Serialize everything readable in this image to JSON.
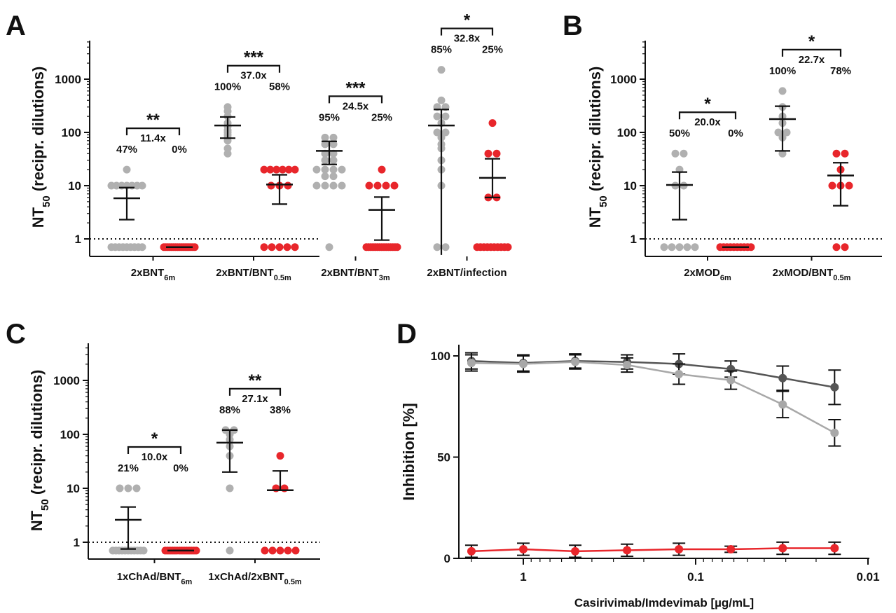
{
  "chart_data": [
    {
      "panel": "A",
      "type": "scatter",
      "ylabel_main": "NT",
      "ylabel_sub": "50",
      "ylabel_rest": " (recipr. dilutions)",
      "yscale": "log",
      "ylim": [
        0.5,
        5000
      ],
      "yticks": [
        "1",
        "10",
        "100",
        "1000"
      ],
      "threshold": 1,
      "groups": [
        {
          "label_main": "2xBNT",
          "label_sub": "6m",
          "significance": "**",
          "fold": "11.4x",
          "subgroups": [
            {
              "color": "#b0b0b0",
              "percent": "47%",
              "values": [
                20,
                10,
                10,
                10,
                10,
                10,
                10,
                10,
                0.7,
                0.7,
                0.7,
                0.7,
                0.7,
                0.7,
                0.7,
                0.7,
                0.7
              ],
              "mean": 5.8,
              "upper": 9.2,
              "lower": 2.3
            },
            {
              "color": "#e8262b",
              "percent": "0%",
              "values": [
                0.7,
                0.7,
                0.7,
                0.7,
                0.7,
                0.7,
                0.7,
                0.7,
                0.7,
                0.7,
                0.7,
                0.7,
                0.7,
                0.7,
                0.7,
                0.7,
                0.7
              ],
              "mean": 0.7,
              "upper": 0.7,
              "lower": 0.7
            }
          ]
        },
        {
          "label_main": "2xBNT/BNT",
          "label_sub": "0.5m",
          "significance": "***",
          "fold": "37.0x",
          "subgroups": [
            {
              "color": "#b0b0b0",
              "percent": "100%",
              "values": [
                300,
                250,
                200,
                150,
                130,
                110,
                100,
                90,
                80,
                70,
                50,
                40
              ],
              "mean": 135,
              "upper": 195,
              "lower": 78
            },
            {
              "color": "#e8262b",
              "percent": "58%",
              "values": [
                20,
                20,
                20,
                20,
                20,
                20,
                10,
                10,
                10,
                0.7,
                0.7,
                0.7,
                0.7,
                0.7
              ],
              "mean": 10.5,
              "upper": 16,
              "lower": 4.5
            }
          ]
        },
        {
          "label_main": "2xBNT/BNT",
          "label_sub": "3m",
          "significance": "***",
          "fold": "24.5x",
          "subgroups": [
            {
              "color": "#b0b0b0",
              "percent": "95%",
              "values": [
                80,
                80,
                60,
                60,
                40,
                40,
                30,
                30,
                20,
                20,
                20,
                20,
                15,
                15,
                10,
                10,
                10,
                10,
                0.7
              ],
              "mean": 45,
              "upper": 68,
              "lower": 25
            },
            {
              "color": "#e8262b",
              "percent": "25%",
              "values": [
                20,
                10,
                10,
                10,
                10,
                0.7,
                0.7,
                0.7,
                0.7,
                0.7,
                0.7,
                0.7,
                0.7,
                0.7,
                0.7,
                0.7,
                0.7,
                0.7,
                0.7,
                0.7
              ],
              "mean": 3.5,
              "upper": 6.1,
              "lower": 0.95
            }
          ]
        },
        {
          "label_main": "2xBNT/infection",
          "label_sub": "",
          "significance": "*",
          "fold": "32.8x",
          "subgroups": [
            {
              "color": "#b0b0b0",
              "percent": "85%",
              "values": [
                1500,
                400,
                300,
                300,
                200,
                200,
                150,
                100,
                100,
                80,
                60,
                50,
                30,
                20,
                10,
                0.7,
                0.7
              ],
              "mean": 135,
              "upper": 270,
              "lower": 0.5
            },
            {
              "color": "#e8262b",
              "percent": "25%",
              "values": [
                150,
                40,
                40,
                6,
                6,
                0.7,
                0.7,
                0.7,
                0.7,
                0.7,
                0.7,
                0.7,
                0.7,
                0.7,
                0.7
              ],
              "mean": 14,
              "upper": 32,
              "lower": 6
            }
          ]
        }
      ]
    },
    {
      "panel": "B",
      "type": "scatter",
      "ylabel_main": "NT",
      "ylabel_sub": "50",
      "ylabel_rest": " (recipr. dilutions)",
      "yscale": "log",
      "ylim": [
        0.5,
        5000
      ],
      "yticks": [
        "1",
        "10",
        "100",
        "1000"
      ],
      "threshold": 1,
      "groups": [
        {
          "label_main": "2xMOD",
          "label_sub": "6m",
          "significance": "*",
          "fold": "20.0x",
          "subgroups": [
            {
              "color": "#b0b0b0",
              "percent": "50%",
              "values": [
                40,
                40,
                20,
                10,
                10,
                0.7,
                0.7,
                0.7,
                0.7,
                0.7
              ],
              "mean": 10.3,
              "upper": 18,
              "lower": 2.3
            },
            {
              "color": "#e8262b",
              "percent": "0%",
              "values": [
                0.7,
                0.7,
                0.7,
                0.7,
                0.7,
                0.7,
                0.7,
                0.7,
                0.7,
                0.7
              ],
              "mean": 0.7,
              "upper": 0.7,
              "lower": 0.7
            }
          ]
        },
        {
          "label_main": "2xMOD/BNT",
          "label_sub": "0.5m",
          "significance": "*",
          "fold": "22.7x",
          "subgroups": [
            {
              "color": "#b0b0b0",
              "percent": "100%",
              "values": [
                600,
                300,
                200,
                150,
                100,
                100,
                80,
                40
              ],
              "mean": 178,
              "upper": 310,
              "lower": 45
            },
            {
              "color": "#e8262b",
              "percent": "78%",
              "values": [
                40,
                40,
                20,
                10,
                10,
                10,
                0.7,
                0.7
              ],
              "mean": 15.5,
              "upper": 27,
              "lower": 4.2
            }
          ]
        }
      ]
    },
    {
      "panel": "C",
      "type": "scatter",
      "ylabel_main": "NT",
      "ylabel_sub": "50",
      "ylabel_rest": " (recipr. dilutions)",
      "yscale": "log",
      "ylim": [
        0.5,
        5000
      ],
      "yticks": [
        "1",
        "10",
        "100",
        "1000"
      ],
      "threshold": 1,
      "groups": [
        {
          "label_main": "1xChAd/BNT",
          "label_sub": "6m",
          "significance": "*",
          "fold": "10.0x",
          "subgroups": [
            {
              "color": "#b0b0b0",
              "percent": "21%",
              "values": [
                10,
                10,
                10,
                0.7,
                0.7,
                0.7,
                0.7,
                0.7,
                0.7,
                0.7,
                0.7,
                0.7,
                0.7,
                0.7
              ],
              "mean": 2.6,
              "upper": 4.5,
              "lower": 0.75
            },
            {
              "color": "#e8262b",
              "percent": "0%",
              "values": [
                0.7,
                0.7,
                0.7,
                0.7,
                0.7,
                0.7,
                0.7,
                0.7,
                0.7,
                0.7,
                0.7,
                0.7,
                0.7,
                0.7
              ],
              "mean": 0.7,
              "upper": 0.7,
              "lower": 0.7
            }
          ]
        },
        {
          "label_main": "1xChAd/2xBNT",
          "label_sub": "0.5m",
          "significance": "**",
          "fold": "27.1x",
          "subgroups": [
            {
              "color": "#b0b0b0",
              "percent": "88%",
              "values": [
                120,
                120,
                100,
                80,
                60,
                40,
                10,
                0.7
              ],
              "mean": 70,
              "upper": 120,
              "lower": 20
            },
            {
              "color": "#e8262b",
              "percent": "38%",
              "values": [
                40,
                10,
                10,
                0.7,
                0.7,
                0.7,
                0.7,
                0.7
              ],
              "mean": 9.2,
              "upper": 21,
              "lower": 9.2
            }
          ]
        }
      ]
    },
    {
      "panel": "D",
      "type": "line",
      "xlabel": "Casirivimab/Imdevimab [µg/mL]",
      "ylabel": "Inhibition [%]",
      "xscale": "log",
      "x_reversed": true,
      "xlim": [
        3,
        0.01
      ],
      "ylim": [
        0,
        105
      ],
      "xticks": [
        "1",
        "0.1",
        "0.01"
      ],
      "yticks": [
        "0",
        "50",
        "100"
      ],
      "x": [
        2,
        1,
        0.5,
        0.25,
        0.125,
        0.0625,
        0.03125,
        0.015625
      ],
      "series": [
        {
          "color": "#555555",
          "values": [
            97.5,
            96.5,
            97.5,
            97,
            96,
            93.5,
            89,
            84.5
          ],
          "err": [
            4,
            4,
            3.5,
            3.5,
            5,
            4,
            6,
            8.5
          ]
        },
        {
          "color": "#a8a8a8",
          "values": [
            96.5,
            96,
            97,
            95.5,
            91,
            88,
            76,
            62
          ],
          "err": [
            4,
            4,
            3.5,
            3.5,
            5,
            4.5,
            6.5,
            6.5
          ]
        },
        {
          "color": "#e8262b",
          "values": [
            3.5,
            4.5,
            3.5,
            4,
            4.5,
            4.5,
            5,
            5
          ],
          "err": [
            3,
            3,
            3,
            3,
            3,
            1.5,
            3,
            3
          ]
        }
      ]
    }
  ]
}
